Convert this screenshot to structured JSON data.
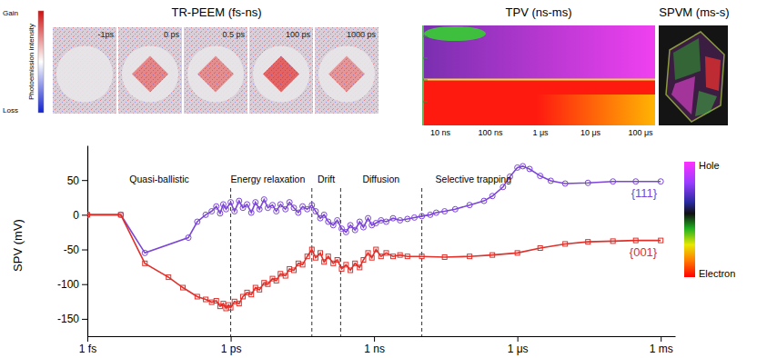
{
  "chart_data": {
    "type": "line",
    "log": "x",
    "grid": false,
    "y_label": "SPV (mV)",
    "xlim": [
      1e-15,
      0.002
    ],
    "xticks": [
      {
        "value": 1e-15,
        "label": "1 fs"
      },
      {
        "value": 1e-12,
        "label": "1 ps"
      },
      {
        "value": 1e-09,
        "label": "1 ns"
      },
      {
        "value": 1e-06,
        "label": "1 μs"
      },
      {
        "value": 0.001,
        "label": "1 ms"
      }
    ],
    "ylim": [
      -175,
      100
    ],
    "yticks": [
      -150,
      -100,
      -50,
      0,
      50
    ],
    "boundaries": [
      1e-12,
      5e-11,
      2e-10,
      1e-08
    ],
    "annotations": [
      {
        "text": "Quasi-ballistic",
        "x": 3.2e-14
      },
      {
        "text": "Energy relaxation",
        "x": 6e-12
      },
      {
        "text": "Drift",
        "x": 1e-10
      },
      {
        "text": "Diffusion",
        "x": 1.4e-09
      },
      {
        "text": "Selective trapping",
        "x": 1.2e-07
      }
    ],
    "series": [
      {
        "name": "{111}",
        "color": "#7b45d6",
        "marker": "circle",
        "line_style": "solid",
        "x": [
          1e-15,
          5e-15,
          1.6e-14,
          1.3e-13,
          2e-13,
          3e-13,
          4e-13,
          5e-13,
          6e-13,
          7e-13,
          8e-13,
          1e-12,
          1.2e-12,
          1.5e-12,
          1.8e-12,
          2.2e-12,
          2.7e-12,
          3.3e-12,
          4e-12,
          5e-12,
          6e-12,
          7.5e-12,
          9e-12,
          1.1e-11,
          1.4e-11,
          1.7e-11,
          2.1e-11,
          2.6e-11,
          3.2e-11,
          4e-11,
          5e-11,
          6e-11,
          7.5e-11,
          9e-11,
          1.1e-10,
          1.4e-10,
          1.7e-10,
          2.1e-10,
          2.6e-10,
          3.2e-10,
          4e-10,
          5e-10,
          6e-10,
          7.5e-10,
          9e-10,
          1.1e-09,
          1.4e-09,
          1.8e-09,
          2.5e-09,
          3.5e-09,
          5e-09,
          7e-09,
          1e-08,
          1.5e-08,
          2e-08,
          3e-08,
          5e-08,
          1e-07,
          2e-07,
          3e-07,
          5e-07,
          7e-07,
          1e-06,
          1.3e-06,
          1.8e-06,
          3e-06,
          5e-06,
          1e-05,
          3e-05,
          0.0001,
          0.0003,
          0.001
        ],
        "values": [
          0,
          0,
          -55,
          -33,
          -10,
          0,
          5,
          12,
          2,
          15,
          8,
          18,
          5,
          20,
          10,
          15,
          3,
          18,
          8,
          22,
          10,
          14,
          5,
          15,
          8,
          18,
          10,
          3,
          12,
          8,
          14,
          5,
          -5,
          0,
          -10,
          -15,
          -8,
          -20,
          -25,
          -15,
          -22,
          -10,
          -18,
          -5,
          -15,
          -12,
          -8,
          -10,
          -5,
          -8,
          -6,
          -4,
          -2,
          0,
          3,
          5,
          8,
          14,
          20,
          27,
          40,
          55,
          68,
          70,
          66,
          56,
          49,
          45,
          46,
          48,
          48,
          48
        ]
      },
      {
        "name": "{001}",
        "color": "#e0302a",
        "marker": "square",
        "line_style": "solid",
        "x": [
          1e-15,
          5e-15,
          1.6e-14,
          5e-14,
          1e-13,
          2e-13,
          3e-13,
          4e-13,
          5e-13,
          6e-13,
          7e-13,
          8e-13,
          9e-13,
          1e-12,
          1.2e-12,
          1.5e-12,
          1.8e-12,
          2.2e-12,
          2.7e-12,
          3.3e-12,
          4e-12,
          5e-12,
          6e-12,
          7.5e-12,
          9e-12,
          1.1e-11,
          1.4e-11,
          1.7e-11,
          2.1e-11,
          2.6e-11,
          3.2e-11,
          4e-11,
          5e-11,
          6e-11,
          7.5e-11,
          9e-11,
          1.1e-10,
          1.4e-10,
          1.7e-10,
          2.1e-10,
          2.6e-10,
          3.2e-10,
          4e-10,
          5e-10,
          6e-10,
          7.5e-10,
          9e-10,
          1.1e-09,
          1.4e-09,
          1.8e-09,
          2.5e-09,
          3.5e-09,
          5e-09,
          1e-08,
          3e-08,
          1e-07,
          3e-07,
          1e-06,
          3e-06,
          1e-05,
          3e-05,
          0.0001,
          0.0003,
          0.001
        ],
        "values": [
          0,
          0,
          -70,
          -90,
          -105,
          -118,
          -122,
          -126,
          -124,
          -132,
          -128,
          -135,
          -130,
          -134,
          -125,
          -128,
          -118,
          -112,
          -115,
          -105,
          -108,
          -98,
          -100,
          -92,
          -95,
          -85,
          -88,
          -78,
          -80,
          -70,
          -72,
          -60,
          -50,
          -62,
          -55,
          -68,
          -60,
          -70,
          -65,
          -78,
          -72,
          -80,
          -70,
          -76,
          -65,
          -55,
          -62,
          -50,
          -60,
          -55,
          -60,
          -58,
          -60,
          -60,
          -61,
          -60,
          -58,
          -55,
          -48,
          -42,
          -39,
          -38,
          -37,
          -37
        ]
      }
    ]
  },
  "panels": {
    "tr_peem": {
      "title": "TR-PEEM (fs-ns)",
      "frames": [
        "-1ps",
        "0 ps",
        "0.5 ps",
        "100 ps",
        "1000 ps"
      ]
    },
    "intensity_bar": {
      "top": "Gain",
      "label": "Photoemission intensity",
      "bottom": "Loss"
    },
    "tpv": {
      "title": "TPV (ns-ms)",
      "ticks": [
        "10 ns",
        "100 ns",
        "1 μs",
        "10 μs",
        "100 μs"
      ]
    },
    "spvm": {
      "title": "SPVM (ms-s)"
    },
    "charge_bar": {
      "top": "Hole",
      "bottom": "Electron"
    }
  }
}
